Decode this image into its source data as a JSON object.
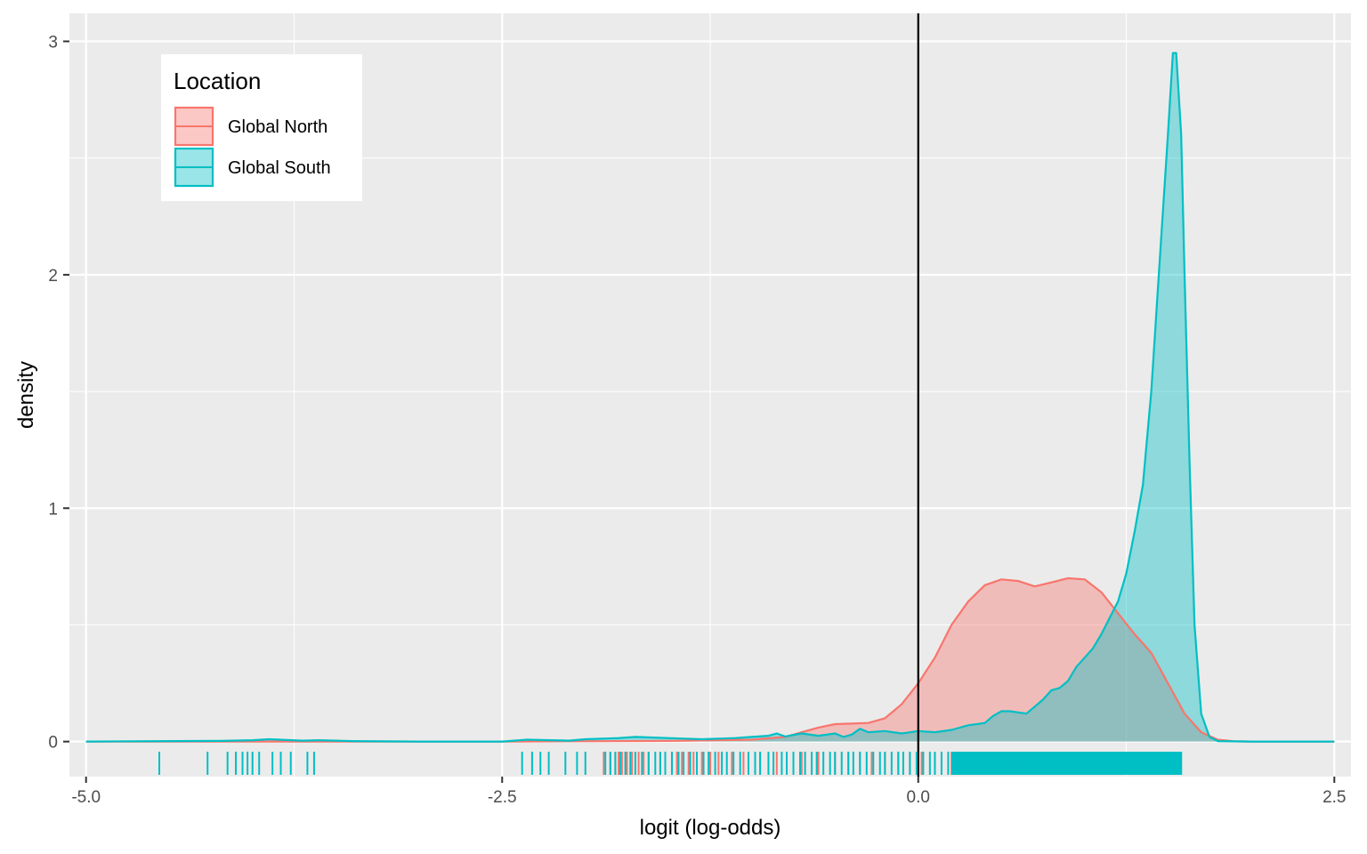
{
  "chart_data": {
    "type": "area",
    "xlabel": "logit (log-odds)",
    "ylabel": "density",
    "xlim": [
      -5.1,
      2.6
    ],
    "ylim": [
      -0.15,
      3.12
    ],
    "x_ticks": [
      -5.0,
      -2.5,
      0.0,
      2.5
    ],
    "x_tick_labels": [
      "-5.0",
      "-2.5",
      "0.0",
      "2.5"
    ],
    "y_ticks": [
      0,
      1,
      2,
      3
    ],
    "y_tick_labels": [
      "0",
      "1",
      "2",
      "3"
    ],
    "grid": true,
    "vline_x": 0.0,
    "legend": {
      "title": "Location",
      "position": "top-left"
    },
    "series": [
      {
        "name": "Global North",
        "color": "#F8766D",
        "density": [
          [
            -5.0,
            0
          ],
          [
            -2.5,
            0
          ],
          [
            -1.5,
            0.003
          ],
          [
            -1.0,
            0.008
          ],
          [
            -0.8,
            0.02
          ],
          [
            -0.7,
            0.04
          ],
          [
            -0.6,
            0.06
          ],
          [
            -0.5,
            0.075
          ],
          [
            -0.4,
            0.077
          ],
          [
            -0.3,
            0.08
          ],
          [
            -0.2,
            0.1
          ],
          [
            -0.1,
            0.16
          ],
          [
            0.0,
            0.25
          ],
          [
            0.1,
            0.36
          ],
          [
            0.2,
            0.5
          ],
          [
            0.3,
            0.6
          ],
          [
            0.4,
            0.67
          ],
          [
            0.5,
            0.695
          ],
          [
            0.6,
            0.688
          ],
          [
            0.7,
            0.665
          ],
          [
            0.8,
            0.682
          ],
          [
            0.9,
            0.7
          ],
          [
            1.0,
            0.695
          ],
          [
            1.1,
            0.64
          ],
          [
            1.2,
            0.55
          ],
          [
            1.3,
            0.46
          ],
          [
            1.4,
            0.38
          ],
          [
            1.5,
            0.25
          ],
          [
            1.6,
            0.12
          ],
          [
            1.7,
            0.04
          ],
          [
            1.8,
            0.008
          ],
          [
            1.9,
            0.001
          ],
          [
            2.0,
            0
          ],
          [
            2.5,
            0
          ]
        ],
        "rug": [
          -1.89,
          -1.85,
          -1.82,
          -1.8,
          -1.78,
          -1.75,
          -1.72,
          -1.68,
          -1.65,
          -1.62,
          -1.55,
          -1.52,
          -1.48,
          -1.45,
          -1.42,
          -1.38,
          -1.35,
          -1.3,
          -1.25,
          -1.2,
          -1.12,
          -1.05,
          -0.95,
          -0.85,
          -0.7,
          -0.6,
          -0.5,
          -0.42,
          -0.35,
          -0.28,
          -0.2,
          -0.12,
          -0.05,
          0.02,
          0.1,
          0.2,
          0.3,
          0.45,
          0.6,
          0.75,
          0.9,
          1.05,
          1.2,
          1.4,
          1.55
        ]
      },
      {
        "name": "Global South",
        "color": "#00BFC4",
        "density": [
          [
            -5.0,
            0
          ],
          [
            -4.5,
            0.002
          ],
          [
            -4.2,
            0.003
          ],
          [
            -4.0,
            0.006
          ],
          [
            -3.9,
            0.01
          ],
          [
            -3.7,
            0.004
          ],
          [
            -3.6,
            0.006
          ],
          [
            -3.4,
            0.002
          ],
          [
            -3.0,
            0
          ],
          [
            -2.5,
            0
          ],
          [
            -2.35,
            0.008
          ],
          [
            -2.1,
            0.004
          ],
          [
            -2.0,
            0.01
          ],
          [
            -1.8,
            0.015
          ],
          [
            -1.7,
            0.02
          ],
          [
            -1.5,
            0.015
          ],
          [
            -1.3,
            0.01
          ],
          [
            -1.1,
            0.015
          ],
          [
            -1.0,
            0.02
          ],
          [
            -0.9,
            0.025
          ],
          [
            -0.85,
            0.035
          ],
          [
            -0.8,
            0.022
          ],
          [
            -0.7,
            0.035
          ],
          [
            -0.6,
            0.025
          ],
          [
            -0.5,
            0.035
          ],
          [
            -0.45,
            0.02
          ],
          [
            -0.4,
            0.03
          ],
          [
            -0.35,
            0.055
          ],
          [
            -0.3,
            0.04
          ],
          [
            -0.2,
            0.045
          ],
          [
            -0.1,
            0.035
          ],
          [
            0.0,
            0.045
          ],
          [
            0.1,
            0.04
          ],
          [
            0.2,
            0.05
          ],
          [
            0.3,
            0.07
          ],
          [
            0.4,
            0.08
          ],
          [
            0.45,
            0.11
          ],
          [
            0.5,
            0.13
          ],
          [
            0.55,
            0.13
          ],
          [
            0.6,
            0.125
          ],
          [
            0.65,
            0.12
          ],
          [
            0.7,
            0.15
          ],
          [
            0.75,
            0.18
          ],
          [
            0.8,
            0.22
          ],
          [
            0.85,
            0.23
          ],
          [
            0.9,
            0.26
          ],
          [
            0.95,
            0.32
          ],
          [
            1.0,
            0.36
          ],
          [
            1.05,
            0.4
          ],
          [
            1.1,
            0.46
          ],
          [
            1.15,
            0.53
          ],
          [
            1.2,
            0.6
          ],
          [
            1.25,
            0.72
          ],
          [
            1.3,
            0.9
          ],
          [
            1.35,
            1.1
          ],
          [
            1.4,
            1.5
          ],
          [
            1.45,
            2.05
          ],
          [
            1.5,
            2.6
          ],
          [
            1.53,
            2.95
          ],
          [
            1.55,
            2.95
          ],
          [
            1.58,
            2.6
          ],
          [
            1.6,
            2.0
          ],
          [
            1.63,
            1.2
          ],
          [
            1.66,
            0.5
          ],
          [
            1.7,
            0.12
          ],
          [
            1.75,
            0.02
          ],
          [
            1.8,
            0.002
          ],
          [
            2.0,
            0
          ],
          [
            2.5,
            0
          ]
        ],
        "rug": [
          -4.56,
          -4.27,
          -4.15,
          -4.1,
          -4.06,
          -4.03,
          -4.0,
          -3.96,
          -3.88,
          -3.83,
          -3.77,
          -3.67,
          -3.63,
          -2.38,
          -2.32,
          -2.27,
          -2.22,
          -2.12,
          -2.05,
          -2.0,
          -1.88,
          -1.85,
          -1.82,
          -1.79,
          -1.76,
          -1.73,
          -1.7,
          -1.66,
          -1.62,
          -1.58,
          -1.55,
          -1.52,
          -1.48,
          -1.44,
          -1.41,
          -1.37,
          -1.33,
          -1.29,
          -1.26,
          -1.22,
          -1.18,
          -1.15,
          -1.11,
          -1.07,
          -1.02,
          -0.98,
          -0.95,
          -0.9,
          -0.87,
          -0.82,
          -0.79,
          -0.75,
          -0.71,
          -0.68,
          -0.64,
          -0.61,
          -0.57,
          -0.53,
          -0.5,
          -0.46,
          -0.42,
          -0.39,
          -0.35,
          -0.31,
          -0.27,
          -0.23,
          -0.2,
          -0.16,
          -0.12,
          -0.09,
          -0.05,
          -0.01,
          0.03,
          0.07,
          0.1,
          0.14,
          0.18,
          0.22,
          0.26,
          0.3,
          0.34,
          0.38,
          0.42,
          0.46,
          0.5,
          0.54,
          0.58,
          0.62,
          0.66,
          0.7,
          0.74,
          0.78,
          0.82,
          0.86,
          0.9,
          0.94,
          0.98,
          1.02,
          1.06,
          1.1,
          1.14,
          1.18,
          1.22,
          1.26,
          1.3,
          1.34,
          1.38,
          1.42,
          1.46,
          1.5,
          1.54,
          1.58
        ],
        "rug_dense_ranges": [
          [
            0.2,
            1.58
          ]
        ]
      }
    ]
  }
}
